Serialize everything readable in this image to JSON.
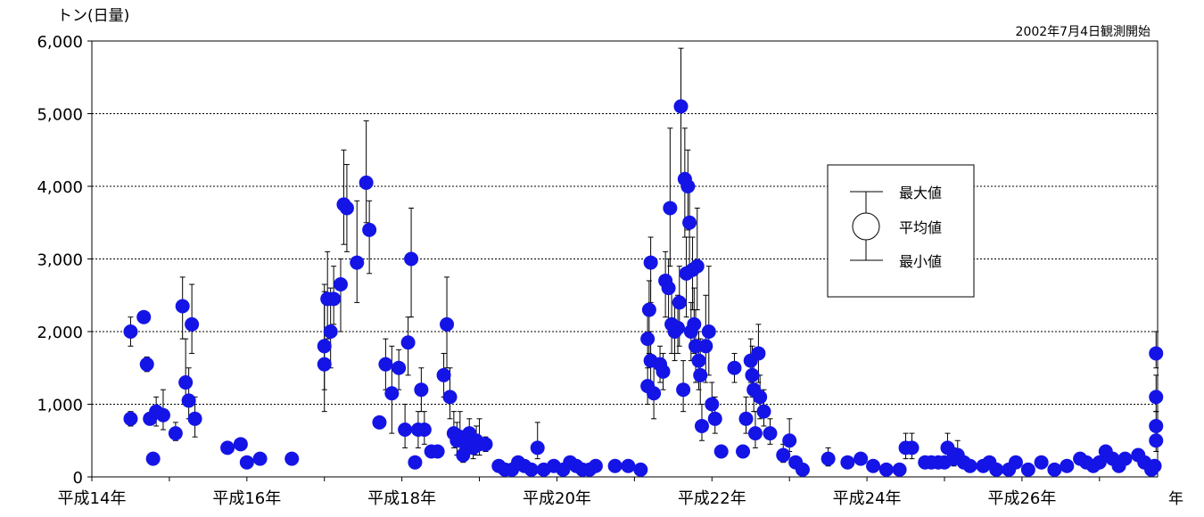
{
  "chart_data": {
    "type": "scatter",
    "y_unit_label": "トン(日量)",
    "note": "2002年7月4日観測開始",
    "x_end_label": "年",
    "ylim": [
      0,
      6000
    ],
    "yticks": [
      {
        "value": 0,
        "label": "0"
      },
      {
        "value": 1000,
        "label": "1,000"
      },
      {
        "value": 2000,
        "label": "2,000"
      },
      {
        "value": 3000,
        "label": "3,000"
      },
      {
        "value": 4000,
        "label": "4,000"
      },
      {
        "value": 5000,
        "label": "5,000"
      },
      {
        "value": 6000,
        "label": "6,000"
      }
    ],
    "xlim": [
      2002.0,
      2015.75
    ],
    "xticks": [
      {
        "value": 2002.0,
        "label": "平成14年"
      },
      {
        "value": 2004.0,
        "label": "平成16年"
      },
      {
        "value": 2006.0,
        "label": "平成18年"
      },
      {
        "value": 2008.0,
        "label": "平成20年"
      },
      {
        "value": 2010.0,
        "label": "平成22年"
      },
      {
        "value": 2012.0,
        "label": "平成24年"
      },
      {
        "value": 2014.0,
        "label": "平成26年"
      }
    ],
    "grid": "horizontal-dotted",
    "marker_color": "#1414e6",
    "legend": {
      "position": "right-middle",
      "items": [
        {
          "symbol": "max",
          "label": "最大値"
        },
        {
          "symbol": "mean",
          "label": "平均値"
        },
        {
          "symbol": "min",
          "label": "最小値"
        }
      ]
    },
    "points": [
      {
        "x": 2002.5,
        "y": 2000,
        "min": 1800,
        "max": 2200
      },
      {
        "x": 2002.5,
        "y": 800,
        "min": 700,
        "max": 900
      },
      {
        "x": 2002.67,
        "y": 2200
      },
      {
        "x": 2002.71,
        "y": 1550,
        "min": 1450,
        "max": 1650
      },
      {
        "x": 2002.75,
        "y": 800
      },
      {
        "x": 2002.79,
        "y": 250
      },
      {
        "x": 2002.83,
        "y": 900,
        "min": 700,
        "max": 1100
      },
      {
        "x": 2002.92,
        "y": 850,
        "min": 650,
        "max": 1200
      },
      {
        "x": 2003.08,
        "y": 600,
        "min": 500,
        "max": 750
      },
      {
        "x": 2003.17,
        "y": 2350,
        "min": 1900,
        "max": 2750
      },
      {
        "x": 2003.21,
        "y": 1300,
        "min": 1000,
        "max": 1900
      },
      {
        "x": 2003.25,
        "y": 1050,
        "min": 800,
        "max": 1500
      },
      {
        "x": 2003.29,
        "y": 2100,
        "min": 1700,
        "max": 2650
      },
      {
        "x": 2003.33,
        "y": 800,
        "min": 550,
        "max": 1100
      },
      {
        "x": 2003.75,
        "y": 400
      },
      {
        "x": 2003.92,
        "y": 450
      },
      {
        "x": 2004.0,
        "y": 200
      },
      {
        "x": 2004.17,
        "y": 250
      },
      {
        "x": 2004.58,
        "y": 250
      },
      {
        "x": 2005.0,
        "y": 1550,
        "min": 900,
        "max": 2550
      },
      {
        "x": 2005.0,
        "y": 1800,
        "min": 1200,
        "max": 2650
      },
      {
        "x": 2005.04,
        "y": 2450,
        "min": 1900,
        "max": 3100
      },
      {
        "x": 2005.08,
        "y": 2000,
        "min": 1500,
        "max": 2600
      },
      {
        "x": 2005.12,
        "y": 2450,
        "min": 2100,
        "max": 2900
      },
      {
        "x": 2005.21,
        "y": 2650,
        "min": 2000,
        "max": 3000
      },
      {
        "x": 2005.25,
        "y": 3750,
        "min": 3200,
        "max": 4500
      },
      {
        "x": 2005.29,
        "y": 3700,
        "min": 3100,
        "max": 4300
      },
      {
        "x": 2005.42,
        "y": 2950,
        "min": 2400,
        "max": 3800
      },
      {
        "x": 2005.54,
        "y": 4050,
        "min": 3500,
        "max": 4900
      },
      {
        "x": 2005.58,
        "y": 3400,
        "min": 2800,
        "max": 3800
      },
      {
        "x": 2005.71,
        "y": 750
      },
      {
        "x": 2005.79,
        "y": 1550,
        "min": 1200,
        "max": 1900
      },
      {
        "x": 2005.87,
        "y": 1150,
        "min": 600,
        "max": 1800
      },
      {
        "x": 2005.96,
        "y": 1500,
        "min": 1200,
        "max": 1750
      },
      {
        "x": 2006.04,
        "y": 650,
        "min": 400,
        "max": 1000
      },
      {
        "x": 2006.08,
        "y": 1850,
        "min": 1400,
        "max": 2200
      },
      {
        "x": 2006.12,
        "y": 3000,
        "min": 2200,
        "max": 3700
      },
      {
        "x": 2006.17,
        "y": 200
      },
      {
        "x": 2006.21,
        "y": 650,
        "min": 400,
        "max": 900
      },
      {
        "x": 2006.25,
        "y": 1200,
        "min": 900,
        "max": 1500
      },
      {
        "x": 2006.29,
        "y": 650,
        "min": 450,
        "max": 900
      },
      {
        "x": 2006.38,
        "y": 350
      },
      {
        "x": 2006.46,
        "y": 350
      },
      {
        "x": 2006.54,
        "y": 1400,
        "min": 1100,
        "max": 1700
      },
      {
        "x": 2006.58,
        "y": 2100,
        "min": 1500,
        "max": 2750
      },
      {
        "x": 2006.62,
        "y": 1100,
        "min": 800,
        "max": 1500
      },
      {
        "x": 2006.67,
        "y": 600,
        "min": 400,
        "max": 900
      },
      {
        "x": 2006.71,
        "y": 500,
        "min": 300,
        "max": 750
      },
      {
        "x": 2006.75,
        "y": 550,
        "min": 350,
        "max": 900
      },
      {
        "x": 2006.79,
        "y": 300,
        "min": 200,
        "max": 500
      },
      {
        "x": 2006.83,
        "y": 450,
        "min": 300,
        "max": 650
      },
      {
        "x": 2006.87,
        "y": 600,
        "min": 400,
        "max": 800
      },
      {
        "x": 2006.92,
        "y": 400,
        "min": 250,
        "max": 550
      },
      {
        "x": 2006.96,
        "y": 500,
        "min": 300,
        "max": 700
      },
      {
        "x": 2007.0,
        "y": 450,
        "min": 300,
        "max": 800
      },
      {
        "x": 2007.08,
        "y": 450,
        "min": 350,
        "max": 550
      },
      {
        "x": 2007.25,
        "y": 150
      },
      {
        "x": 2007.33,
        "y": 100
      },
      {
        "x": 2007.42,
        "y": 100
      },
      {
        "x": 2007.5,
        "y": 200
      },
      {
        "x": 2007.58,
        "y": 150
      },
      {
        "x": 2007.67,
        "y": 100
      },
      {
        "x": 2007.75,
        "y": 400,
        "min": 250,
        "max": 750
      },
      {
        "x": 2007.83,
        "y": 100
      },
      {
        "x": 2007.96,
        "y": 150
      },
      {
        "x": 2008.08,
        "y": 100
      },
      {
        "x": 2008.17,
        "y": 200
      },
      {
        "x": 2008.25,
        "y": 150
      },
      {
        "x": 2008.33,
        "y": 100
      },
      {
        "x": 2008.42,
        "y": 100
      },
      {
        "x": 2008.5,
        "y": 150
      },
      {
        "x": 2008.75,
        "y": 150
      },
      {
        "x": 2008.92,
        "y": 150
      },
      {
        "x": 2009.08,
        "y": 100
      },
      {
        "x": 2009.17,
        "y": 1250,
        "min": 1000,
        "max": 1600
      },
      {
        "x": 2009.17,
        "y": 1900,
        "min": 1500,
        "max": 2300
      },
      {
        "x": 2009.19,
        "y": 2300,
        "min": 1700,
        "max": 2700
      },
      {
        "x": 2009.21,
        "y": 2950,
        "min": 2400,
        "max": 3300
      },
      {
        "x": 2009.21,
        "y": 1600,
        "min": 1200,
        "max": 2000
      },
      {
        "x": 2009.25,
        "y": 1150,
        "min": 800,
        "max": 1600
      },
      {
        "x": 2009.33,
        "y": 1550,
        "min": 1300,
        "max": 1800
      },
      {
        "x": 2009.37,
        "y": 1450,
        "min": 1200,
        "max": 1700
      },
      {
        "x": 2009.4,
        "y": 2700,
        "min": 2200,
        "max": 3100
      },
      {
        "x": 2009.44,
        "y": 2600,
        "min": 2100,
        "max": 3000
      },
      {
        "x": 2009.46,
        "y": 3700,
        "min": 2900,
        "max": 4800
      },
      {
        "x": 2009.48,
        "y": 2100,
        "min": 1700,
        "max": 2600
      },
      {
        "x": 2009.52,
        "y": 2000,
        "min": 1600,
        "max": 2400
      },
      {
        "x": 2009.56,
        "y": 2050,
        "min": 1700,
        "max": 2500
      },
      {
        "x": 2009.58,
        "y": 2400,
        "min": 1800,
        "max": 2900
      },
      {
        "x": 2009.6,
        "y": 5100,
        "min": 4100,
        "max": 5900
      },
      {
        "x": 2009.63,
        "y": 1200,
        "min": 900,
        "max": 1600
      },
      {
        "x": 2009.65,
        "y": 4100,
        "min": 3300,
        "max": 4800
      },
      {
        "x": 2009.67,
        "y": 2800,
        "min": 2200,
        "max": 3300
      },
      {
        "x": 2009.69,
        "y": 4000,
        "min": 3400,
        "max": 4500
      },
      {
        "x": 2009.71,
        "y": 3500,
        "min": 2900,
        "max": 4100
      },
      {
        "x": 2009.73,
        "y": 2000,
        "min": 1600,
        "max": 2400
      },
      {
        "x": 2009.75,
        "y": 2850,
        "min": 2300,
        "max": 3300
      },
      {
        "x": 2009.77,
        "y": 2100,
        "min": 1700,
        "max": 2600
      },
      {
        "x": 2009.79,
        "y": 1800,
        "min": 1300,
        "max": 2300
      },
      {
        "x": 2009.81,
        "y": 2900,
        "min": 2300,
        "max": 3700
      },
      {
        "x": 2009.83,
        "y": 1600,
        "min": 1200,
        "max": 2000
      },
      {
        "x": 2009.85,
        "y": 1400,
        "min": 1000,
        "max": 1900
      },
      {
        "x": 2009.87,
        "y": 700,
        "min": 500,
        "max": 1000
      },
      {
        "x": 2009.92,
        "y": 1800,
        "min": 1300,
        "max": 2500
      },
      {
        "x": 2009.96,
        "y": 2000,
        "min": 1400,
        "max": 2900
      },
      {
        "x": 2010.0,
        "y": 1000,
        "min": 800,
        "max": 1300
      },
      {
        "x": 2010.04,
        "y": 800,
        "min": 600,
        "max": 1100
      },
      {
        "x": 2010.12,
        "y": 350
      },
      {
        "x": 2010.29,
        "y": 1500,
        "min": 1300,
        "max": 1700
      },
      {
        "x": 2010.4,
        "y": 350
      },
      {
        "x": 2010.44,
        "y": 800,
        "min": 600,
        "max": 1100
      },
      {
        "x": 2010.5,
        "y": 1600,
        "min": 1300,
        "max": 1900
      },
      {
        "x": 2010.52,
        "y": 1400,
        "min": 1100,
        "max": 1800
      },
      {
        "x": 2010.54,
        "y": 1200,
        "min": 900,
        "max": 1600
      },
      {
        "x": 2010.56,
        "y": 600,
        "min": 400,
        "max": 900
      },
      {
        "x": 2010.6,
        "y": 1700,
        "min": 1300,
        "max": 2100
      },
      {
        "x": 2010.62,
        "y": 1100,
        "min": 800,
        "max": 1400
      },
      {
        "x": 2010.67,
        "y": 900,
        "min": 700,
        "max": 1200
      },
      {
        "x": 2010.75,
        "y": 600,
        "min": 450,
        "max": 800
      },
      {
        "x": 2010.92,
        "y": 300,
        "min": 200,
        "max": 450
      },
      {
        "x": 2011.0,
        "y": 500,
        "min": 350,
        "max": 800
      },
      {
        "x": 2011.08,
        "y": 200
      },
      {
        "x": 2011.17,
        "y": 100
      },
      {
        "x": 2011.5,
        "y": 250,
        "min": 150,
        "max": 400
      },
      {
        "x": 2011.75,
        "y": 200
      },
      {
        "x": 2011.92,
        "y": 250
      },
      {
        "x": 2012.08,
        "y": 150
      },
      {
        "x": 2012.25,
        "y": 100
      },
      {
        "x": 2012.42,
        "y": 100
      },
      {
        "x": 2012.5,
        "y": 400,
        "min": 250,
        "max": 600
      },
      {
        "x": 2012.58,
        "y": 400,
        "min": 250,
        "max": 600
      },
      {
        "x": 2012.75,
        "y": 200
      },
      {
        "x": 2012.83,
        "y": 200
      },
      {
        "x": 2012.92,
        "y": 200
      },
      {
        "x": 2013.0,
        "y": 200
      },
      {
        "x": 2013.04,
        "y": 400,
        "min": 250,
        "max": 600
      },
      {
        "x": 2013.12,
        "y": 250,
        "min": 150,
        "max": 400
      },
      {
        "x": 2013.17,
        "y": 300,
        "min": 200,
        "max": 500
      },
      {
        "x": 2013.25,
        "y": 200
      },
      {
        "x": 2013.33,
        "y": 150
      },
      {
        "x": 2013.5,
        "y": 150
      },
      {
        "x": 2013.58,
        "y": 200
      },
      {
        "x": 2013.67,
        "y": 100
      },
      {
        "x": 2013.83,
        "y": 100
      },
      {
        "x": 2013.92,
        "y": 200
      },
      {
        "x": 2014.08,
        "y": 100
      },
      {
        "x": 2014.25,
        "y": 200
      },
      {
        "x": 2014.42,
        "y": 100
      },
      {
        "x": 2014.58,
        "y": 150
      },
      {
        "x": 2014.75,
        "y": 250
      },
      {
        "x": 2014.83,
        "y": 200
      },
      {
        "x": 2014.92,
        "y": 150
      },
      {
        "x": 2015.0,
        "y": 200
      },
      {
        "x": 2015.08,
        "y": 350
      },
      {
        "x": 2015.17,
        "y": 250
      },
      {
        "x": 2015.25,
        "y": 150
      },
      {
        "x": 2015.33,
        "y": 250
      },
      {
        "x": 2015.5,
        "y": 300
      },
      {
        "x": 2015.58,
        "y": 200
      },
      {
        "x": 2015.67,
        "y": 100
      },
      {
        "x": 2015.71,
        "y": 150
      },
      {
        "x": 2015.73,
        "y": 1700,
        "min": 1500,
        "max": 2000
      },
      {
        "x": 2015.73,
        "y": 1100,
        "min": 900,
        "max": 1400
      },
      {
        "x": 2015.73,
        "y": 700,
        "min": 500,
        "max": 900
      },
      {
        "x": 2015.73,
        "y": 500,
        "min": 350,
        "max": 700
      }
    ]
  }
}
